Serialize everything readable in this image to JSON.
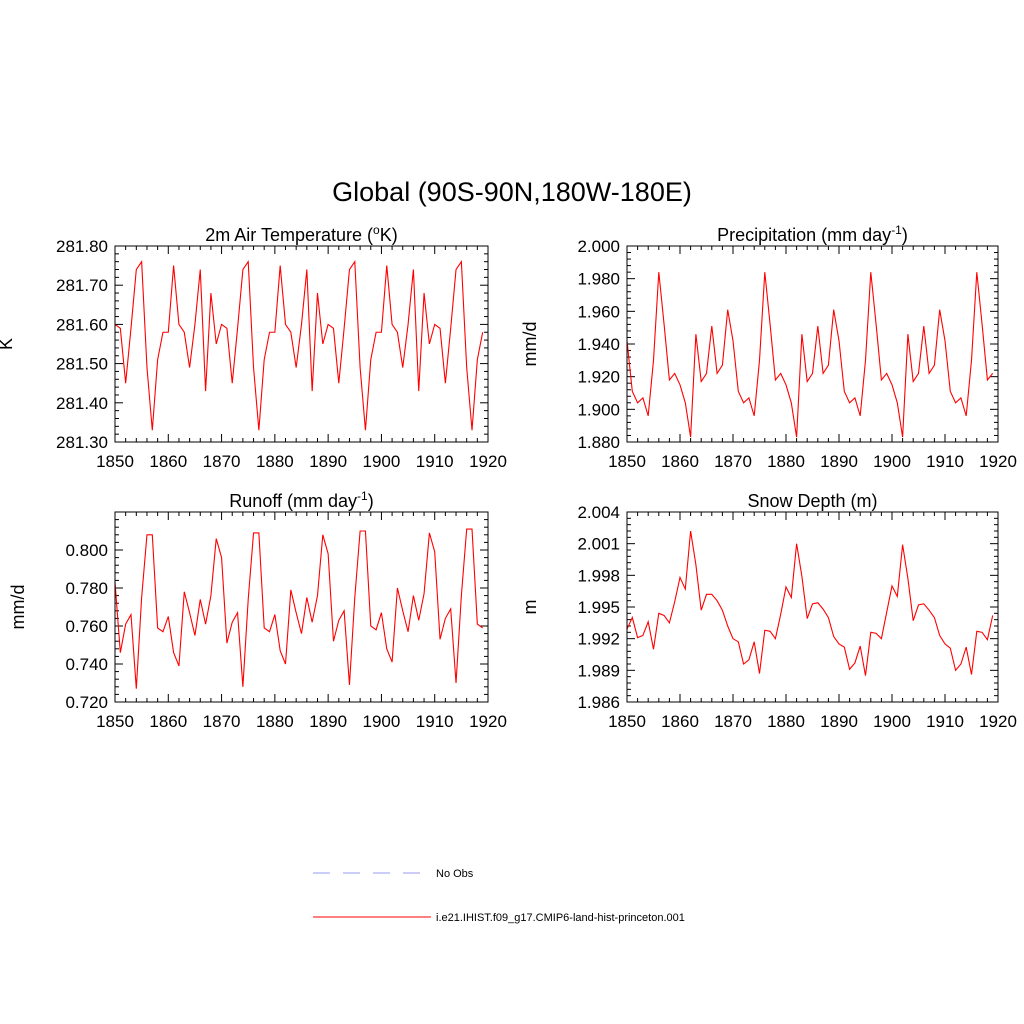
{
  "figure": {
    "title": "Global (90S-90N,180W-180E)"
  },
  "chart_data": [
    {
      "type": "line",
      "title": "2m Air Temperature (",
      "title_sup": "o",
      "title_suffix": "K)",
      "xlabel": "",
      "ylabel": "K",
      "xlim": [
        1850,
        1920
      ],
      "ylim": [
        281.3,
        281.8
      ],
      "xticks": [
        "1850",
        "1860",
        "1870",
        "1880",
        "1890",
        "1900",
        "1910",
        "1920"
      ],
      "yticks": [
        "281.30",
        "281.40",
        "281.50",
        "281.60",
        "281.70",
        "281.80"
      ],
      "color": "#ff0000",
      "x": [
        1850,
        1851,
        1852,
        1853,
        1854,
        1855,
        1856,
        1857,
        1858,
        1859,
        1860,
        1861,
        1862,
        1863,
        1864,
        1865,
        1866,
        1867,
        1868,
        1869,
        1870,
        1871,
        1872,
        1873,
        1874,
        1875,
        1876,
        1877,
        1878,
        1879,
        1880,
        1881,
        1882,
        1883,
        1884,
        1885,
        1886,
        1887,
        1888,
        1889,
        1890,
        1891,
        1892,
        1893,
        1894,
        1895,
        1896,
        1897,
        1898,
        1899,
        1900,
        1901,
        1902,
        1903,
        1904,
        1905,
        1906,
        1907,
        1908,
        1909,
        1910,
        1911,
        1912,
        1913,
        1914,
        1915,
        1916,
        1917,
        1918,
        1919
      ],
      "y": [
        281.6,
        281.59,
        281.45,
        281.59,
        281.74,
        281.76,
        281.49,
        281.33,
        281.51,
        281.58,
        281.58,
        281.75,
        281.6,
        281.58,
        281.49,
        281.6,
        281.74,
        281.43,
        281.68,
        281.55,
        281.6,
        281.59,
        281.45,
        281.59,
        281.74,
        281.76,
        281.49,
        281.33,
        281.51,
        281.58,
        281.58,
        281.75,
        281.6,
        281.58,
        281.49,
        281.6,
        281.74,
        281.43,
        281.68,
        281.55,
        281.6,
        281.59,
        281.45,
        281.59,
        281.74,
        281.76,
        281.49,
        281.33,
        281.51,
        281.58,
        281.58,
        281.75,
        281.6,
        281.58,
        281.49,
        281.6,
        281.74,
        281.43,
        281.68,
        281.55,
        281.6,
        281.59,
        281.45,
        281.59,
        281.74,
        281.76,
        281.49,
        281.33,
        281.51,
        281.58
      ]
    },
    {
      "type": "line",
      "title": "Precipitation (mm day",
      "title_sup": "-1",
      "title_suffix": ")",
      "xlabel": "",
      "ylabel": "mm/d",
      "xlim": [
        1850,
        1920
      ],
      "ylim": [
        1.88,
        2.0
      ],
      "xticks": [
        "1850",
        "1860",
        "1870",
        "1880",
        "1890",
        "1900",
        "1910",
        "1920"
      ],
      "yticks": [
        "1.880",
        "1.900",
        "1.920",
        "1.940",
        "1.960",
        "1.980",
        "2.000"
      ],
      "color": "#ff0000",
      "x": [
        1850,
        1851,
        1852,
        1853,
        1854,
        1855,
        1856,
        1857,
        1858,
        1859,
        1860,
        1861,
        1862,
        1863,
        1864,
        1865,
        1866,
        1867,
        1868,
        1869,
        1870,
        1871,
        1872,
        1873,
        1874,
        1875,
        1876,
        1877,
        1878,
        1879,
        1880,
        1881,
        1882,
        1883,
        1884,
        1885,
        1886,
        1887,
        1888,
        1889,
        1890,
        1891,
        1892,
        1893,
        1894,
        1895,
        1896,
        1897,
        1898,
        1899,
        1900,
        1901,
        1902,
        1903,
        1904,
        1905,
        1906,
        1907,
        1908,
        1909,
        1910,
        1911,
        1912,
        1913,
        1914,
        1915,
        1916,
        1917,
        1918,
        1919
      ],
      "y": [
        1.942,
        1.911,
        1.904,
        1.907,
        1.896,
        1.93,
        1.984,
        1.952,
        1.918,
        1.922,
        1.915,
        1.904,
        1.883,
        1.946,
        1.917,
        1.922,
        1.951,
        1.922,
        1.927,
        1.961,
        1.942,
        1.911,
        1.904,
        1.907,
        1.896,
        1.93,
        1.984,
        1.952,
        1.918,
        1.922,
        1.915,
        1.904,
        1.883,
        1.946,
        1.917,
        1.922,
        1.951,
        1.922,
        1.927,
        1.961,
        1.942,
        1.911,
        1.904,
        1.907,
        1.896,
        1.93,
        1.984,
        1.952,
        1.918,
        1.922,
        1.915,
        1.904,
        1.883,
        1.946,
        1.917,
        1.922,
        1.951,
        1.922,
        1.927,
        1.961,
        1.942,
        1.911,
        1.904,
        1.907,
        1.896,
        1.93,
        1.984,
        1.952,
        1.918,
        1.922
      ]
    },
    {
      "type": "line",
      "title": "Runoff (mm day",
      "title_sup": "-1",
      "title_suffix": ")",
      "xlabel": "",
      "ylabel": "mm/d",
      "xlim": [
        1850,
        1920
      ],
      "ylim": [
        0.72,
        0.82
      ],
      "xticks": [
        "1850",
        "1860",
        "1870",
        "1880",
        "1890",
        "1900",
        "1910",
        "1920"
      ],
      "yticks": [
        "0.720",
        "0.740",
        "0.760",
        "0.780",
        "0.800"
      ],
      "color": "#ff0000",
      "x": [
        1850,
        1851,
        1852,
        1853,
        1854,
        1855,
        1856,
        1857,
        1858,
        1859,
        1860,
        1861,
        1862,
        1863,
        1864,
        1865,
        1866,
        1867,
        1868,
        1869,
        1870,
        1871,
        1872,
        1873,
        1874,
        1875,
        1876,
        1877,
        1878,
        1879,
        1880,
        1881,
        1882,
        1883,
        1884,
        1885,
        1886,
        1887,
        1888,
        1889,
        1890,
        1891,
        1892,
        1893,
        1894,
        1895,
        1896,
        1897,
        1898,
        1899,
        1900,
        1901,
        1902,
        1903,
        1904,
        1905,
        1906,
        1907,
        1908,
        1909,
        1910,
        1911,
        1912,
        1913,
        1914,
        1915,
        1916,
        1917,
        1918,
        1919
      ],
      "y": [
        0.783,
        0.746,
        0.761,
        0.766,
        0.727,
        0.775,
        0.808,
        0.808,
        0.759,
        0.757,
        0.765,
        0.746,
        0.739,
        0.778,
        0.767,
        0.755,
        0.774,
        0.761,
        0.776,
        0.806,
        0.796,
        0.751,
        0.762,
        0.767,
        0.728,
        0.774,
        0.809,
        0.809,
        0.759,
        0.757,
        0.766,
        0.747,
        0.74,
        0.779,
        0.767,
        0.756,
        0.775,
        0.762,
        0.776,
        0.808,
        0.798,
        0.752,
        0.763,
        0.768,
        0.729,
        0.775,
        0.81,
        0.81,
        0.76,
        0.758,
        0.767,
        0.748,
        0.741,
        0.78,
        0.768,
        0.757,
        0.776,
        0.763,
        0.777,
        0.809,
        0.799,
        0.753,
        0.764,
        0.769,
        0.73,
        0.776,
        0.811,
        0.811,
        0.761,
        0.759
      ]
    },
    {
      "type": "line",
      "title": "Snow Depth (m)",
      "title_sup": "",
      "title_suffix": "",
      "xlabel": "",
      "ylabel": "m",
      "xlim": [
        1850,
        1920
      ],
      "ylim": [
        1.986,
        2.004
      ],
      "xticks": [
        "1850",
        "1860",
        "1870",
        "1880",
        "1890",
        "1900",
        "1910",
        "1920"
      ],
      "yticks": [
        "1.986",
        "1.989",
        "1.992",
        "1.995",
        "1.998",
        "2.001",
        "2.004"
      ],
      "color": "#ff0000",
      "x": [
        1850,
        1851,
        1852,
        1853,
        1854,
        1855,
        1856,
        1857,
        1858,
        1859,
        1860,
        1861,
        1862,
        1863,
        1864,
        1865,
        1866,
        1867,
        1868,
        1869,
        1870,
        1871,
        1872,
        1873,
        1874,
        1875,
        1876,
        1877,
        1878,
        1879,
        1880,
        1881,
        1882,
        1883,
        1884,
        1885,
        1886,
        1887,
        1888,
        1889,
        1890,
        1891,
        1892,
        1893,
        1894,
        1895,
        1896,
        1897,
        1898,
        1899,
        1900,
        1901,
        1902,
        1903,
        1904,
        1905,
        1906,
        1907,
        1908,
        1909,
        1910,
        1911,
        1912,
        1913,
        1914,
        1915,
        1916,
        1917,
        1918,
        1919
      ],
      "y": [
        1.9929,
        1.994,
        1.9921,
        1.9923,
        1.9936,
        1.991,
        1.9944,
        1.9942,
        1.9935,
        1.9955,
        1.9978,
        1.9967,
        2.0022,
        1.999,
        1.9947,
        1.9962,
        1.9962,
        1.9956,
        1.9947,
        1.9932,
        1.992,
        1.9917,
        1.9896,
        1.99,
        1.9917,
        1.9887,
        1.9928,
        1.9927,
        1.992,
        1.9943,
        1.9969,
        1.9959,
        2.001,
        1.9979,
        1.9939,
        1.9953,
        1.9954,
        1.9948,
        1.994,
        1.9922,
        1.9915,
        1.9912,
        1.9891,
        1.9897,
        1.9913,
        1.9885,
        1.9926,
        1.9925,
        1.992,
        1.9945,
        1.997,
        1.996,
        2.0009,
        1.9977,
        1.9937,
        1.9952,
        1.9953,
        1.9947,
        1.994,
        1.9923,
        1.9915,
        1.9911,
        1.989,
        1.9896,
        1.9912,
        1.9886,
        1.9927,
        1.9926,
        1.9919,
        1.9942
      ]
    }
  ],
  "legend": {
    "items": [
      {
        "label": "No Obs",
        "color": "#9a9af0",
        "style": "dashed"
      },
      {
        "label": "i.e21.IHIST.f09_g17.CMIP6-land-hist-princeton.001",
        "color": "#ff0000",
        "style": "solid"
      }
    ]
  }
}
